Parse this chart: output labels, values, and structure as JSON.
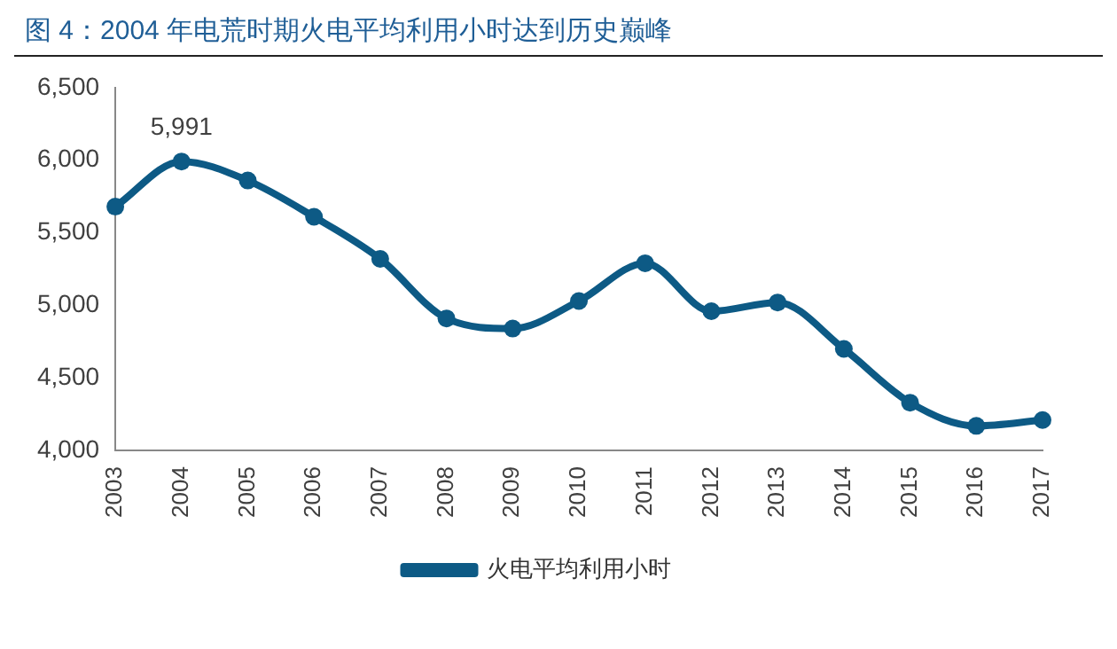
{
  "chart_data": {
    "type": "line",
    "title": "图 4：2004 年电荒时期火电平均利用小时达到历史巅峰",
    "categories": [
      "2003",
      "2004",
      "2005",
      "2006",
      "2007",
      "2008",
      "2009",
      "2010",
      "2011",
      "2012",
      "2013",
      "2014",
      "2015",
      "2016",
      "2017"
    ],
    "series": [
      {
        "name": "火电平均利用小时",
        "color": "#0d5a85",
        "values": [
          5680,
          5991,
          5860,
          5610,
          5320,
          4910,
          4840,
          5030,
          5290,
          4960,
          5020,
          4700,
          4330,
          4170,
          4210
        ],
        "value_labels": [
          null,
          "5,991",
          null,
          null,
          null,
          null,
          null,
          null,
          null,
          null,
          null,
          null,
          null,
          null,
          null
        ]
      }
    ],
    "ylim": [
      4000,
      6500
    ],
    "yticks": [
      {
        "value": 4000,
        "label": "4,000"
      },
      {
        "value": 4500,
        "label": "4,500"
      },
      {
        "value": 5000,
        "label": "5,000"
      },
      {
        "value": 5500,
        "label": "5,500"
      },
      {
        "value": 6000,
        "label": "6,000"
      },
      {
        "value": 6500,
        "label": "6,500"
      }
    ],
    "grid": false,
    "legend": "bottom",
    "marker": "circle",
    "line_style": "solid"
  }
}
